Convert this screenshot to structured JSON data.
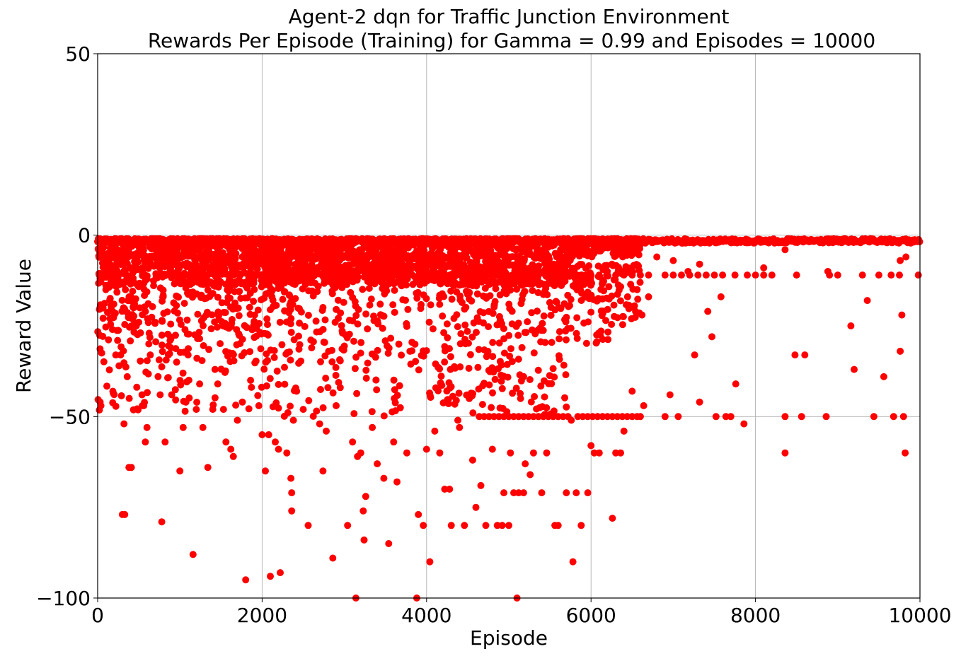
{
  "chart_data": {
    "type": "scatter",
    "title_line1": "Agent-2 dqn for Traffic Junction Environment",
    "title_line2": "Rewards Per Episode (Training) for Gamma = 0.99 and Episodes = 10000",
    "xlabel": "Episode",
    "ylabel": "Reward Value",
    "xlim": [
      0,
      10000
    ],
    "ylim": [
      -100,
      50
    ],
    "x_ticks": [
      0,
      2000,
      4000,
      6000,
      8000,
      10000
    ],
    "x_tick_labels": [
      "0",
      "2000",
      "4000",
      "6000",
      "8000",
      "10000"
    ],
    "y_ticks": [
      -100,
      -50,
      0,
      50
    ],
    "y_tick_labels": [
      "−100",
      "−50",
      "0",
      "50"
    ],
    "grid": true,
    "marker_color": "#ff0000",
    "series": [
      {
        "points": [
          [
            30,
            -46
          ],
          [
            40,
            -47
          ],
          [
            100,
            -15
          ],
          [
            150,
            -23
          ],
          [
            160,
            -13
          ],
          [
            180,
            -26
          ],
          [
            200,
            -22
          ],
          [
            220,
            -33
          ],
          [
            260,
            -36
          ],
          [
            280,
            -33
          ],
          [
            300,
            -77
          ],
          [
            330,
            -77
          ],
          [
            320,
            -52
          ],
          [
            360,
            -39
          ],
          [
            380,
            -64
          ],
          [
            410,
            -64
          ],
          [
            470,
            -25
          ],
          [
            500,
            -24
          ],
          [
            540,
            -44
          ],
          [
            560,
            -47
          ],
          [
            580,
            -57
          ],
          [
            600,
            -53
          ],
          [
            640,
            -33
          ],
          [
            700,
            -24
          ],
          [
            760,
            -44
          ],
          [
            780,
            -79
          ],
          [
            820,
            -57
          ],
          [
            860,
            -33
          ],
          [
            900,
            -44
          ],
          [
            960,
            -35
          ],
          [
            1000,
            -65
          ],
          [
            1040,
            -53
          ],
          [
            1100,
            -33
          ],
          [
            1160,
            -88
          ],
          [
            1200,
            -48
          ],
          [
            1240,
            -41
          ],
          [
            1280,
            -53
          ],
          [
            1340,
            -64
          ],
          [
            1400,
            -48
          ],
          [
            1460,
            -41
          ],
          [
            1530,
            -48
          ],
          [
            1560,
            -57
          ],
          [
            1620,
            -59
          ],
          [
            1650,
            -61
          ],
          [
            1700,
            -51
          ],
          [
            1760,
            -46
          ],
          [
            1800,
            -95
          ],
          [
            1860,
            -40
          ],
          [
            1960,
            -47
          ],
          [
            2000,
            -55
          ],
          [
            2040,
            -65
          ],
          [
            2080,
            -55
          ],
          [
            2100,
            -94
          ],
          [
            2160,
            -57
          ],
          [
            2200,
            -59
          ],
          [
            2220,
            -93
          ],
          [
            2300,
            -60
          ],
          [
            2350,
            -67
          ],
          [
            2360,
            -71
          ],
          [
            2360,
            -76
          ],
          [
            2380,
            -51
          ],
          [
            2420,
            -43
          ],
          [
            2500,
            -48
          ],
          [
            2560,
            -80
          ],
          [
            2700,
            -52
          ],
          [
            2740,
            -65
          ],
          [
            2780,
            -54
          ],
          [
            2800,
            -42
          ],
          [
            2860,
            -89
          ],
          [
            2900,
            -47
          ],
          [
            2950,
            -42
          ],
          [
            3040,
            -80
          ],
          [
            3100,
            -57
          ],
          [
            3140,
            -100
          ],
          [
            3160,
            -61
          ],
          [
            3200,
            -60
          ],
          [
            3230,
            -76
          ],
          [
            3240,
            -84
          ],
          [
            3260,
            -72
          ],
          [
            3340,
            -53
          ],
          [
            3400,
            -63
          ],
          [
            3480,
            -67
          ],
          [
            3540,
            -85
          ],
          [
            3600,
            -57
          ],
          [
            3640,
            -68
          ],
          [
            3760,
            -60
          ],
          [
            3880,
            -100
          ],
          [
            3900,
            -77
          ],
          [
            3960,
            -80
          ],
          [
            4000,
            -59
          ],
          [
            4040,
            -90
          ],
          [
            4100,
            -54
          ],
          [
            4160,
            -60
          ],
          [
            4220,
            -70
          ],
          [
            4280,
            -70
          ],
          [
            4300,
            -80
          ],
          [
            4380,
            -51
          ],
          [
            4400,
            -53
          ],
          [
            4460,
            -80
          ],
          [
            4560,
            -62
          ],
          [
            4600,
            -75
          ],
          [
            4660,
            -69
          ],
          [
            4720,
            -80
          ],
          [
            4800,
            -59
          ],
          [
            4860,
            -80
          ],
          [
            4920,
            -80
          ],
          [
            4940,
            -71
          ],
          [
            5000,
            -80
          ],
          [
            5020,
            -60
          ],
          [
            5060,
            -71
          ],
          [
            5100,
            -100
          ],
          [
            5120,
            -71
          ],
          [
            5180,
            -71
          ],
          [
            5200,
            -63
          ],
          [
            5260,
            -66
          ],
          [
            5300,
            -60
          ],
          [
            5400,
            -71
          ],
          [
            5460,
            -60
          ],
          [
            5560,
            -80
          ],
          [
            5600,
            -80
          ],
          [
            5700,
            -71
          ],
          [
            5760,
            -51
          ],
          [
            5780,
            -90
          ],
          [
            5820,
            -71
          ],
          [
            5880,
            -80
          ],
          [
            5960,
            -71
          ],
          [
            6000,
            -58
          ],
          [
            6040,
            -60
          ],
          [
            6100,
            -60
          ],
          [
            6260,
            -78
          ],
          [
            6300,
            -60
          ],
          [
            6360,
            -60
          ],
          [
            6400,
            -54
          ],
          [
            6500,
            -43
          ],
          [
            6600,
            -50
          ],
          [
            6640,
            -47
          ],
          [
            6900,
            -50
          ],
          [
            6960,
            -44
          ],
          [
            7060,
            -50
          ],
          [
            7260,
            -33
          ],
          [
            7320,
            -46
          ],
          [
            7520,
            -50
          ],
          [
            7760,
            -41
          ],
          [
            7860,
            -52
          ],
          [
            8360,
            -50
          ],
          [
            8360,
            -60
          ],
          [
            8480,
            -33
          ],
          [
            8560,
            -50
          ],
          [
            8600,
            -33
          ],
          [
            8860,
            -50
          ],
          [
            9160,
            -25
          ],
          [
            9200,
            -37
          ],
          [
            9360,
            -18
          ],
          [
            9440,
            -50
          ],
          [
            9560,
            -39
          ],
          [
            9680,
            -50
          ],
          [
            9760,
            -32
          ],
          [
            9780,
            -22
          ],
          [
            9800,
            -50
          ],
          [
            9820,
            -60
          ],
          [
            4640,
            -50
          ],
          [
            4700,
            -50
          ],
          [
            4760,
            -50
          ],
          [
            4820,
            -50
          ],
          [
            4880,
            -50
          ],
          [
            4940,
            -50
          ],
          [
            5000,
            -50
          ],
          [
            5060,
            -50
          ],
          [
            5120,
            -50
          ],
          [
            5180,
            -50
          ],
          [
            5240,
            -50
          ],
          [
            5300,
            -50
          ],
          [
            5360,
            -50
          ],
          [
            5420,
            -50
          ],
          [
            5480,
            -50
          ],
          [
            5540,
            -50
          ],
          [
            5600,
            -50
          ],
          [
            5660,
            -50
          ],
          [
            5720,
            -50
          ],
          [
            5840,
            -50
          ],
          [
            5900,
            -50
          ],
          [
            5960,
            -50
          ],
          [
            6020,
            -50
          ],
          [
            6080,
            -50
          ],
          [
            6140,
            -50
          ],
          [
            6200,
            -50
          ],
          [
            6260,
            -50
          ],
          [
            6320,
            -50
          ],
          [
            6380,
            -50
          ],
          [
            6440,
            -50
          ],
          [
            6500,
            -50
          ],
          [
            6560,
            -50
          ],
          [
            7640,
            -50
          ],
          [
            7700,
            -50
          ],
          [
            6000,
            -11
          ],
          [
            6100,
            -11
          ],
          [
            6200,
            -11
          ],
          [
            6300,
            -11
          ],
          [
            6400,
            -11
          ],
          [
            6500,
            -11
          ],
          [
            6600,
            -11
          ],
          [
            6700,
            -11
          ],
          [
            6900,
            -11
          ],
          [
            7000,
            -11
          ],
          [
            7100,
            -11
          ],
          [
            7200,
            -11
          ],
          [
            7300,
            -11
          ],
          [
            7400,
            -11
          ],
          [
            7500,
            -11
          ],
          [
            7600,
            -11
          ],
          [
            7750,
            -11
          ],
          [
            7900,
            -11
          ],
          [
            8000,
            -11
          ],
          [
            8100,
            -11
          ],
          [
            8200,
            -11
          ],
          [
            8500,
            -11
          ],
          [
            8900,
            -11
          ],
          [
            9000,
            -11
          ],
          [
            9300,
            -11
          ],
          [
            9500,
            -11
          ],
          [
            9650,
            -11
          ],
          [
            9750,
            -11
          ],
          [
            9980,
            -11
          ],
          [
            6560,
            -15
          ],
          [
            6620,
            -22
          ],
          [
            6700,
            -17
          ],
          [
            6800,
            -6
          ],
          [
            7000,
            -7
          ],
          [
            7180,
            -10
          ],
          [
            7320,
            -8
          ],
          [
            7420,
            -21
          ],
          [
            7470,
            -28
          ],
          [
            7580,
            -17
          ],
          [
            7820,
            -2
          ],
          [
            8100,
            -9
          ],
          [
            8360,
            -4
          ],
          [
            8880,
            -10
          ],
          [
            9080,
            -1
          ],
          [
            9760,
            -7
          ],
          [
            9830,
            -6
          ]
        ],
        "dense_band": {
          "segments": [
            {
              "x_from": 0,
              "x_to": 10000,
              "y_min": -1,
              "y_max": -2
            },
            {
              "x_from": 0,
              "x_to": 2000,
              "y_min": -10,
              "y_max": -1
            },
            {
              "x_from": 2000,
              "x_to": 4000,
              "y_min": -12,
              "y_max": -1
            },
            {
              "x_from": 4000,
              "x_to": 5800,
              "y_min": -14,
              "y_max": -1
            },
            {
              "x_from": 5800,
              "x_to": 6600,
              "y_min": -6,
              "y_max": -1
            }
          ],
          "sparse_region": {
            "x_from": 0,
            "x_to": 6600,
            "y_min": -50,
            "y_max": -8
          }
        }
      }
    ]
  }
}
